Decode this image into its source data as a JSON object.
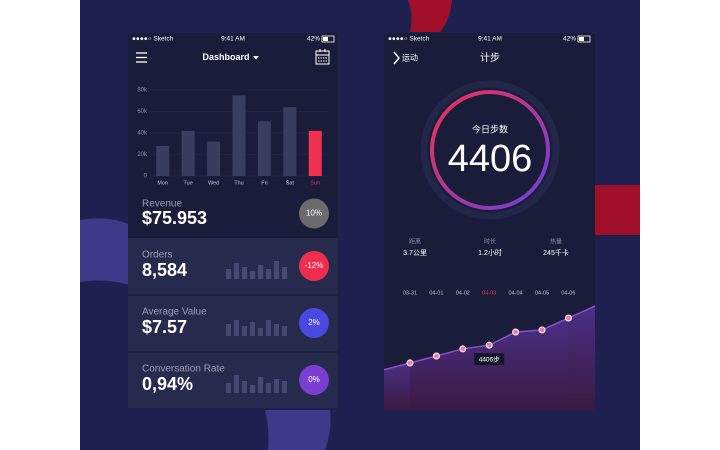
{
  "dashboard": {
    "status": {
      "carrier": "●●●●○ Sketch",
      "time": "9:41 AM",
      "battery": "42%"
    },
    "title": "Dashboard",
    "metrics": [
      {
        "label": "Revenue",
        "value": "$75.953",
        "badge": "10%",
        "badge_color": "#6b6b6e",
        "bars": []
      },
      {
        "label": "Orders",
        "value": "8,584",
        "badge": "-12%",
        "badge_color": "#f02d4f",
        "bars": [
          5,
          8,
          6,
          4,
          7,
          5,
          9,
          6
        ]
      },
      {
        "label": "Average Value",
        "value": "$7.57",
        "badge": "2%",
        "badge_color": "#4a48e0",
        "bars": [
          6,
          8,
          5,
          7,
          4,
          8,
          6,
          5
        ]
      },
      {
        "label": "Conversation Rate",
        "value": "0,94%",
        "badge": "0%",
        "badge_color": "#7a3fd0",
        "bars": [
          5,
          9,
          6,
          4,
          8,
          5,
          7,
          6
        ]
      }
    ]
  },
  "steps_screen": {
    "status": {
      "carrier": "●●●●○ Sketch",
      "time": "9:41 AM",
      "battery": "42%"
    },
    "back": "运动",
    "title": "计步",
    "today_label": "今日步数",
    "today_steps": 4406,
    "stats": [
      {
        "label": "距离",
        "value": "3.7公里"
      },
      {
        "label": "时长",
        "value": "1.2小时"
      },
      {
        "label": "热量",
        "value": "245千卡"
      }
    ]
  },
  "chart_data": [
    {
      "type": "bar",
      "categories": [
        "Mon",
        "Tue",
        "Wed",
        "Thu",
        "Fri",
        "Sat",
        "Sun"
      ],
      "values": [
        28000,
        42000,
        32000,
        75000,
        51000,
        64000,
        42000
      ],
      "color": "#3a3e5e",
      "highlight_color": "#f0314f",
      "highlight_index": 6,
      "ylim": [
        0,
        80000
      ],
      "yticks": [
        0,
        {
          "value": 20000,
          "label": "20k"
        },
        {
          "value": 40000,
          "label": "40k"
        },
        {
          "value": 60000,
          "label": "60k"
        },
        {
          "value": 80000,
          "label": "80k"
        }
      ],
      "grid": true
    },
    {
      "type": "line",
      "categories": [
        "03-31",
        "04-01",
        "04-02",
        "04-03",
        "04-04",
        "04-05",
        "04-06"
      ],
      "values": [
        3200,
        3670,
        4150,
        4406,
        5300,
        5440,
        6250
      ],
      "value_labels": [
        null,
        null,
        null,
        "4406步",
        null,
        null,
        null
      ],
      "color": "#8a4fd0",
      "highlight_color": "#f0314f",
      "highlight_index": 3,
      "ylim": [
        0,
        7000
      ]
    }
  ]
}
